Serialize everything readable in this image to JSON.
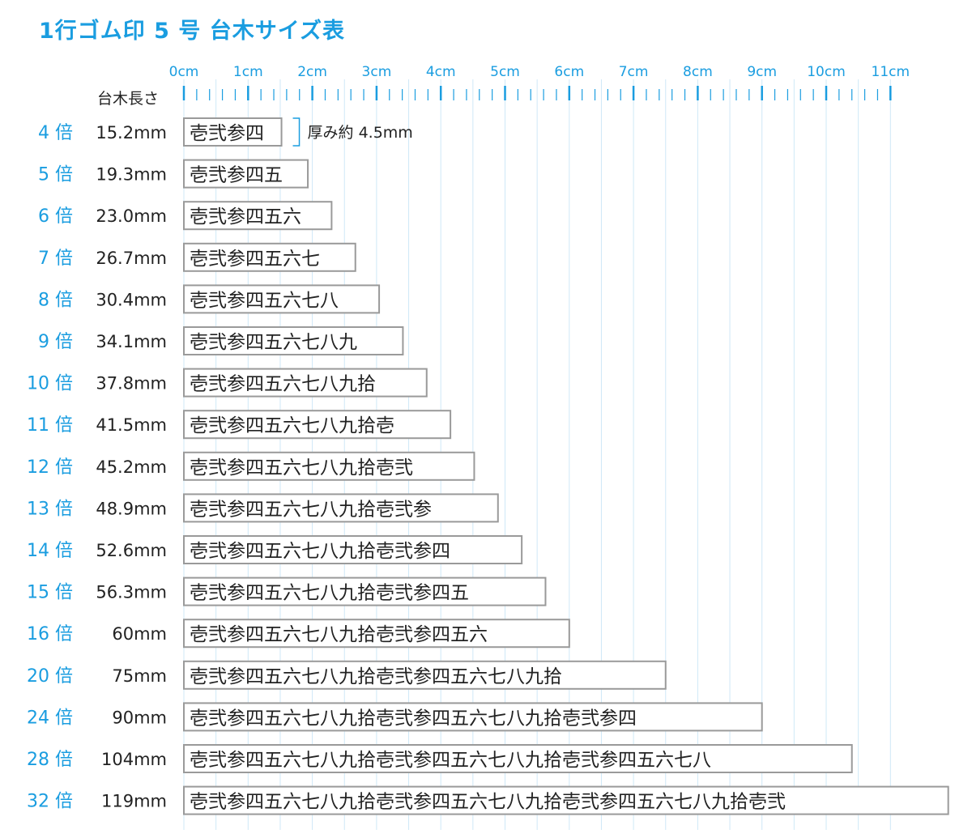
{
  "title": "1行ゴム印 5 号 台木サイズ表",
  "colors": {
    "accent": "#1a9de0",
    "grid": "#cfe8f7",
    "box_border": "#9a9a9a",
    "text": "#222222"
  },
  "chart_data": {
    "type": "bar",
    "orientation": "horizontal",
    "title": "1行ゴム印 5 号 台木サイズ表",
    "x_unit": "cm",
    "xlim": [
      0,
      11
    ],
    "x_ticks": [
      "0cm",
      "1cm",
      "2cm",
      "3cm",
      "4cm",
      "5cm",
      "6cm",
      "7cm",
      "8cm",
      "9cm",
      "10cm",
      "11cm"
    ],
    "minor_tick_step_mm": 2,
    "length_header": "台木長さ",
    "thickness_note": "厚み約 4.5mm",
    "grid": true,
    "rows": [
      {
        "label": "4 倍",
        "length_label": "15.2mm",
        "value_mm": 15.2,
        "text": "壱弐参四"
      },
      {
        "label": "5 倍",
        "length_label": "19.3mm",
        "value_mm": 19.3,
        "text": "壱弐参四五"
      },
      {
        "label": "6 倍",
        "length_label": "23.0mm",
        "value_mm": 23.0,
        "text": "壱弐参四五六"
      },
      {
        "label": "7 倍",
        "length_label": "26.7mm",
        "value_mm": 26.7,
        "text": "壱弐参四五六七"
      },
      {
        "label": "8 倍",
        "length_label": "30.4mm",
        "value_mm": 30.4,
        "text": "壱弐参四五六七八"
      },
      {
        "label": "9 倍",
        "length_label": "34.1mm",
        "value_mm": 34.1,
        "text": "壱弐参四五六七八九"
      },
      {
        "label": "10 倍",
        "length_label": "37.8mm",
        "value_mm": 37.8,
        "text": "壱弐参四五六七八九拾"
      },
      {
        "label": "11 倍",
        "length_label": "41.5mm",
        "value_mm": 41.5,
        "text": "壱弐参四五六七八九拾壱"
      },
      {
        "label": "12 倍",
        "length_label": "45.2mm",
        "value_mm": 45.2,
        "text": "壱弐参四五六七八九拾壱弐"
      },
      {
        "label": "13 倍",
        "length_label": "48.9mm",
        "value_mm": 48.9,
        "text": "壱弐参四五六七八九拾壱弐参"
      },
      {
        "label": "14 倍",
        "length_label": "52.6mm",
        "value_mm": 52.6,
        "text": "壱弐参四五六七八九拾壱弐参四"
      },
      {
        "label": "15 倍",
        "length_label": "56.3mm",
        "value_mm": 56.3,
        "text": "壱弐参四五六七八九拾壱弐参四五"
      },
      {
        "label": "16 倍",
        "length_label": "60mm",
        "value_mm": 60,
        "text": "壱弐参四五六七八九拾壱弐参四五六"
      },
      {
        "label": "20 倍",
        "length_label": "75mm",
        "value_mm": 75,
        "text": "壱弐参四五六七八九拾壱弐参四五六七八九拾"
      },
      {
        "label": "24 倍",
        "length_label": "90mm",
        "value_mm": 90,
        "text": "壱弐参四五六七八九拾壱弐参四五六七八九拾壱弐参四"
      },
      {
        "label": "28 倍",
        "length_label": "104mm",
        "value_mm": 104,
        "text": "壱弐参四五六七八九拾壱弐参四五六七八九拾壱弐参四五六七八"
      },
      {
        "label": "32 倍",
        "length_label": "119mm",
        "value_mm": 119,
        "text": "壱弐参四五六七八九拾壱弐参四五六七八九拾壱弐参四五六七八九拾壱弐"
      }
    ]
  }
}
